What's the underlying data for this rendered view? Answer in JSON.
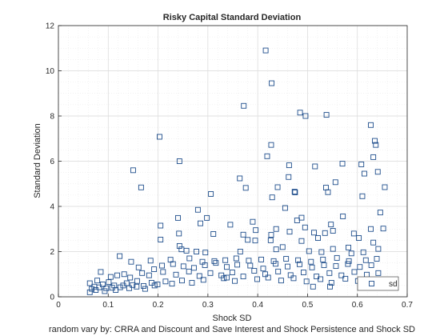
{
  "chart_data": {
    "type": "scatter",
    "title": "Risky Capital Standard Deviation",
    "xlabel": "Shock SD",
    "ylabel": "Standard Deviation",
    "caption": "random vary by: CRRA and Discount and Save Interest and Shock Persistence and Shock SD",
    "xlim": [
      0,
      0.7
    ],
    "ylim": [
      0,
      12
    ],
    "x_ticks": [
      0,
      0.1,
      0.2,
      0.3,
      0.4,
      0.5,
      0.6,
      0.7
    ],
    "x_tick_labels": [
      "0",
      "0.1",
      "0.2",
      "0.3",
      "0.4",
      "0.5",
      "0.6",
      "0.7"
    ],
    "y_ticks": [
      0,
      2,
      4,
      6,
      8,
      10,
      12
    ],
    "y_tick_labels": [
      "0",
      "2",
      "4",
      "6",
      "8",
      "10",
      "12"
    ],
    "grid": true,
    "minor_grid": true,
    "legend_position": "bottom-right",
    "marker": "square",
    "marker_color": "#1f4e8c",
    "series": [
      {
        "name": "sd",
        "points": [
          [
            0.416,
            10.9
          ],
          [
            0.428,
            9.45
          ],
          [
            0.372,
            8.45
          ],
          [
            0.485,
            8.15
          ],
          [
            0.496,
            8.0
          ],
          [
            0.538,
            8.05
          ],
          [
            0.627,
            7.6
          ],
          [
            0.203,
            7.08
          ],
          [
            0.635,
            6.9
          ],
          [
            0.637,
            6.72
          ],
          [
            0.427,
            6.72
          ],
          [
            0.419,
            6.22
          ],
          [
            0.632,
            6.18
          ],
          [
            0.243,
            6.0
          ],
          [
            0.57,
            5.89
          ],
          [
            0.608,
            5.86
          ],
          [
            0.15,
            5.6
          ],
          [
            0.463,
            5.82
          ],
          [
            0.515,
            5.77
          ],
          [
            0.641,
            5.53
          ],
          [
            0.614,
            5.45
          ],
          [
            0.364,
            5.24
          ],
          [
            0.462,
            5.3
          ],
          [
            0.166,
            4.84
          ],
          [
            0.556,
            5.07
          ],
          [
            0.376,
            4.82
          ],
          [
            0.44,
            4.85
          ],
          [
            0.537,
            4.83
          ],
          [
            0.655,
            4.85
          ],
          [
            0.474,
            4.65
          ],
          [
            0.475,
            4.62
          ],
          [
            0.429,
            4.4
          ],
          [
            0.541,
            4.63
          ],
          [
            0.61,
            4.45
          ],
          [
            0.306,
            4.55
          ],
          [
            0.455,
            3.93
          ],
          [
            0.28,
            3.85
          ],
          [
            0.646,
            3.73
          ],
          [
            0.488,
            3.5
          ],
          [
            0.571,
            3.56
          ],
          [
            0.298,
            3.49
          ],
          [
            0.24,
            3.49
          ],
          [
            0.479,
            3.38
          ],
          [
            0.39,
            3.32
          ],
          [
            0.285,
            3.25
          ],
          [
            0.345,
            3.19
          ],
          [
            0.547,
            3.2
          ],
          [
            0.205,
            3.15
          ],
          [
            0.495,
            3.07
          ],
          [
            0.437,
            3.0
          ],
          [
            0.627,
            3.0
          ],
          [
            0.396,
            2.95
          ],
          [
            0.652,
            3.02
          ],
          [
            0.464,
            2.88
          ],
          [
            0.551,
            2.92
          ],
          [
            0.513,
            2.84
          ],
          [
            0.535,
            2.82
          ],
          [
            0.593,
            2.8
          ],
          [
            0.311,
            2.78
          ],
          [
            0.242,
            2.8
          ],
          [
            0.371,
            2.75
          ],
          [
            0.427,
            2.74
          ],
          [
            0.521,
            2.6
          ],
          [
            0.603,
            2.6
          ],
          [
            0.205,
            2.53
          ],
          [
            0.38,
            2.52
          ],
          [
            0.395,
            2.49
          ],
          [
            0.426,
            2.5
          ],
          [
            0.488,
            2.47
          ],
          [
            0.632,
            2.4
          ],
          [
            0.243,
            2.25
          ],
          [
            0.45,
            2.2
          ],
          [
            0.582,
            2.18
          ],
          [
            0.247,
            2.1
          ],
          [
            0.365,
            2.0
          ],
          [
            0.437,
            2.1
          ],
          [
            0.551,
            2.12
          ],
          [
            0.642,
            2.12
          ],
          [
            0.257,
            2.04
          ],
          [
            0.277,
            2.0
          ],
          [
            0.503,
            2.02
          ],
          [
            0.528,
            1.98
          ],
          [
            0.295,
            1.96
          ],
          [
            0.588,
            1.92
          ],
          [
            0.612,
            1.97
          ],
          [
            0.123,
            1.8
          ],
          [
            0.185,
            1.6
          ],
          [
            0.225,
            1.64
          ],
          [
            0.263,
            1.7
          ],
          [
            0.289,
            1.55
          ],
          [
            0.313,
            1.58
          ],
          [
            0.335,
            1.62
          ],
          [
            0.357,
            1.7
          ],
          [
            0.382,
            1.6
          ],
          [
            0.407,
            1.65
          ],
          [
            0.432,
            1.58
          ],
          [
            0.457,
            1.68
          ],
          [
            0.481,
            1.62
          ],
          [
            0.507,
            1.55
          ],
          [
            0.531,
            1.65
          ],
          [
            0.559,
            1.72
          ],
          [
            0.583,
            1.58
          ],
          [
            0.617,
            1.62
          ],
          [
            0.639,
            1.68
          ],
          [
            0.146,
            1.55
          ],
          [
            0.161,
            1.3
          ],
          [
            0.192,
            1.22
          ],
          [
            0.208,
            1.38
          ],
          [
            0.23,
            1.45
          ],
          [
            0.251,
            1.35
          ],
          [
            0.272,
            1.28
          ],
          [
            0.294,
            1.4
          ],
          [
            0.316,
            1.5
          ],
          [
            0.338,
            1.32
          ],
          [
            0.359,
            1.42
          ],
          [
            0.385,
            1.38
          ],
          [
            0.411,
            1.25
          ],
          [
            0.436,
            1.46
          ],
          [
            0.46,
            1.34
          ],
          [
            0.484,
            1.44
          ],
          [
            0.509,
            1.3
          ],
          [
            0.533,
            1.4
          ],
          [
            0.557,
            1.36
          ],
          [
            0.581,
            1.45
          ],
          [
            0.605,
            1.32
          ],
          [
            0.628,
            1.4
          ],
          [
            0.085,
            1.1
          ],
          [
            0.105,
            0.88
          ],
          [
            0.118,
            0.95
          ],
          [
            0.132,
            1.0
          ],
          [
            0.144,
            0.85
          ],
          [
            0.168,
            1.05
          ],
          [
            0.182,
            0.95
          ],
          [
            0.21,
            1.1
          ],
          [
            0.236,
            0.98
          ],
          [
            0.262,
            1.12
          ],
          [
            0.283,
            0.92
          ],
          [
            0.305,
            1.05
          ],
          [
            0.327,
            0.95
          ],
          [
            0.349,
            1.08
          ],
          [
            0.371,
            0.9
          ],
          [
            0.393,
            1.15
          ],
          [
            0.415,
            1.0
          ],
          [
            0.441,
            1.12
          ],
          [
            0.466,
            0.96
          ],
          [
            0.492,
            1.08
          ],
          [
            0.518,
            0.9
          ],
          [
            0.544,
            1.05
          ],
          [
            0.568,
            0.95
          ],
          [
            0.594,
            1.1
          ],
          [
            0.619,
            0.98
          ],
          [
            0.642,
            1.05
          ],
          [
            0.063,
            0.6
          ],
          [
            0.072,
            0.45
          ],
          [
            0.078,
            0.72
          ],
          [
            0.089,
            0.55
          ],
          [
            0.096,
            0.38
          ],
          [
            0.101,
            0.65
          ],
          [
            0.112,
            0.5
          ],
          [
            0.124,
            0.42
          ],
          [
            0.137,
            0.6
          ],
          [
            0.149,
            0.52
          ],
          [
            0.158,
            0.7
          ],
          [
            0.171,
            0.48
          ],
          [
            0.187,
            0.62
          ],
          [
            0.199,
            0.55
          ],
          [
            0.215,
            0.68
          ],
          [
            0.228,
            0.58
          ],
          [
            0.248,
            0.72
          ],
          [
            0.268,
            0.62
          ],
          [
            0.291,
            0.75
          ],
          [
            0.332,
            0.82
          ],
          [
            0.354,
            0.7
          ],
          [
            0.399,
            0.78
          ],
          [
            0.421,
            0.85
          ],
          [
            0.447,
            0.72
          ],
          [
            0.472,
            0.82
          ],
          [
            0.498,
            0.68
          ],
          [
            0.526,
            0.78
          ],
          [
            0.548,
            0.62
          ],
          [
            0.576,
            0.8
          ],
          [
            0.601,
            0.7
          ],
          [
            0.626,
            0.75
          ],
          [
            0.063,
            0.2
          ],
          [
            0.067,
            0.35
          ],
          [
            0.075,
            0.3
          ],
          [
            0.082,
            0.42
          ],
          [
            0.093,
            0.25
          ],
          [
            0.108,
            0.4
          ],
          [
            0.115,
            0.3
          ],
          [
            0.13,
            0.5
          ],
          [
            0.142,
            0.38
          ],
          [
            0.157,
            0.45
          ],
          [
            0.174,
            0.35
          ],
          [
            0.193,
            0.5
          ],
          [
            0.338,
            0.85
          ],
          [
            0.511,
            0.45
          ],
          [
            0.545,
            0.45
          ],
          [
            0.635,
            0.55
          ],
          [
            0.635,
            0.6
          ]
        ]
      }
    ]
  }
}
